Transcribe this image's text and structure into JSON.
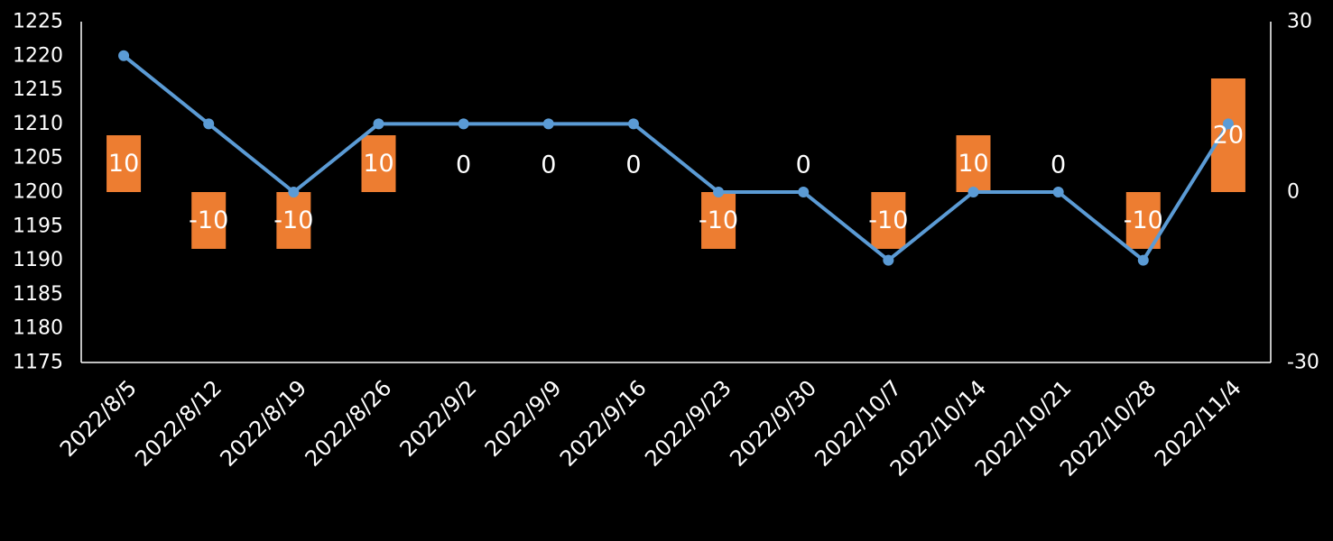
{
  "chart_data": {
    "type": "bar",
    "combo": "bar+line",
    "categories": [
      "2022/8/5",
      "2022/8/12",
      "2022/8/19",
      "2022/8/26",
      "2022/9/2",
      "2022/9/9",
      "2022/9/16",
      "2022/9/23",
      "2022/9/30",
      "2022/10/7",
      "2022/10/14",
      "2022/10/21",
      "2022/10/28",
      "2022/11/4"
    ],
    "series": [
      {
        "type": "line",
        "axis": "left",
        "color": "#5b9bd5",
        "values": [
          1220,
          1210,
          1200,
          1210,
          1210,
          1210,
          1210,
          1200,
          1200,
          1190,
          1200,
          1200,
          1190,
          1210
        ]
      },
      {
        "type": "bar",
        "axis": "right",
        "color": "#ed7d31",
        "values": [
          10,
          -10,
          -10,
          10,
          0,
          0,
          0,
          -10,
          0,
          -10,
          10,
          0,
          -10,
          20
        ],
        "data_labels": [
          "10",
          "-10",
          "-10",
          "10",
          "0",
          "0",
          "0",
          "-10",
          "0",
          "-10",
          "10",
          "0",
          "-10",
          "20"
        ]
      }
    ],
    "y_left": {
      "min": 1175,
      "max": 1225,
      "ticks": [
        "1225",
        "1220",
        "1215",
        "1210",
        "1205",
        "1200",
        "1195",
        "1190",
        "1185",
        "1180",
        "1175"
      ]
    },
    "y_right": {
      "min": -30,
      "max": 30,
      "ticks": [
        "30",
        "0",
        "-30"
      ]
    },
    "grid": false,
    "legend": "none",
    "background": "#000000",
    "axis_color": "#ffffff"
  }
}
